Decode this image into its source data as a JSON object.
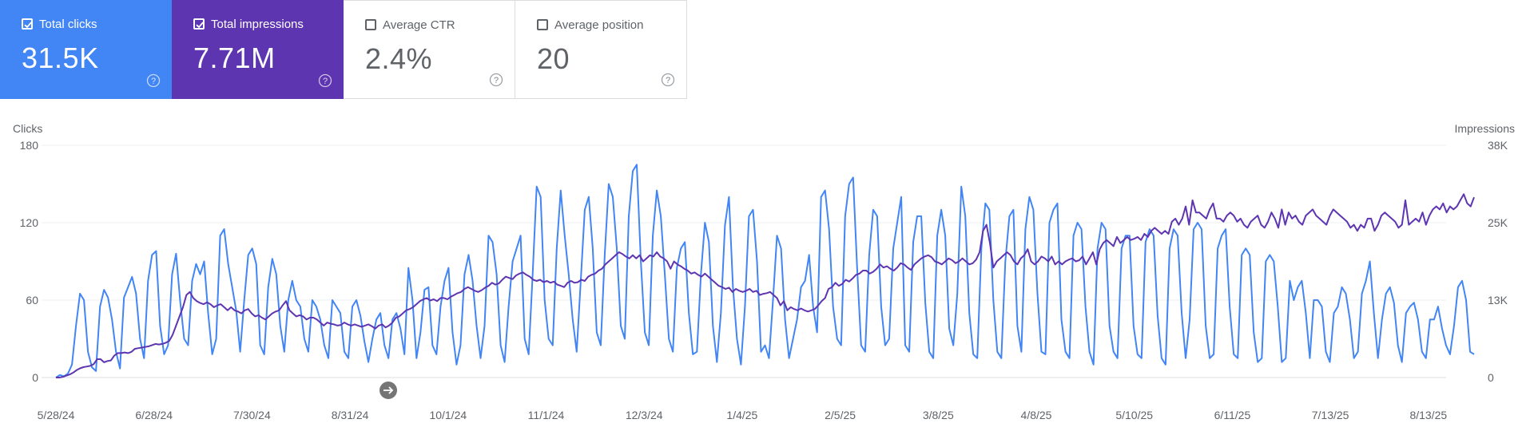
{
  "cards": [
    {
      "label": "Total clicks",
      "value": "31.5K",
      "checked": true,
      "color": "#4285f4"
    },
    {
      "label": "Total impressions",
      "value": "7.71M",
      "checked": true,
      "color": "#5e35b1"
    },
    {
      "label": "Average CTR",
      "value": "2.4%",
      "checked": false,
      "color": "#ffffff"
    },
    {
      "label": "Average position",
      "value": "20",
      "checked": false,
      "color": "#ffffff"
    }
  ],
  "chart_data": {
    "type": "line",
    "left_axis": {
      "title": "Clicks",
      "ticks": [
        "0",
        "60",
        "120",
        "180"
      ],
      "range": [
        0,
        180
      ]
    },
    "right_axis": {
      "title": "Impressions",
      "ticks": [
        "0",
        "13K",
        "25K",
        "38K"
      ],
      "range": [
        0,
        38000
      ]
    },
    "x_ticks": [
      "5/28/24",
      "6/28/24",
      "7/30/24",
      "8/31/24",
      "10/1/24",
      "11/1/24",
      "12/3/24",
      "1/4/25",
      "2/5/25",
      "3/8/25",
      "4/8/25",
      "5/10/25",
      "6/11/25",
      "7/13/25",
      "8/13/25"
    ],
    "series": [
      {
        "name": "Clicks",
        "axis": "left",
        "color": "#4285f4",
        "values": [
          0,
          2,
          1,
          3,
          10,
          40,
          65,
          60,
          20,
          8,
          5,
          55,
          68,
          62,
          45,
          20,
          7,
          62,
          70,
          78,
          65,
          30,
          15,
          75,
          95,
          98,
          40,
          18,
          25,
          80,
          96,
          60,
          30,
          25,
          75,
          88,
          80,
          90,
          50,
          18,
          30,
          110,
          115,
          88,
          70,
          52,
          20,
          60,
          95,
          100,
          88,
          25,
          18,
          70,
          92,
          80,
          40,
          20,
          60,
          75,
          60,
          55,
          30,
          20,
          60,
          55,
          45,
          25,
          15,
          60,
          55,
          50,
          20,
          15,
          55,
          60,
          48,
          28,
          12,
          30,
          45,
          50,
          25,
          15,
          45,
          50,
          38,
          18,
          85,
          60,
          15,
          35,
          68,
          70,
          25,
          18,
          55,
          75,
          85,
          35,
          10,
          25,
          80,
          95,
          75,
          40,
          15,
          40,
          110,
          105,
          80,
          25,
          12,
          55,
          90,
          100,
          110,
          30,
          18,
          80,
          148,
          140,
          60,
          30,
          25,
          100,
          145,
          110,
          80,
          45,
          20,
          75,
          130,
          140,
          100,
          35,
          25,
          95,
          150,
          140,
          100,
          40,
          30,
          125,
          160,
          165,
          90,
          35,
          25,
          110,
          145,
          125,
          80,
          30,
          20,
          85,
          100,
          105,
          50,
          18,
          20,
          80,
          120,
          105,
          40,
          12,
          50,
          118,
          140,
          70,
          30,
          10,
          55,
          125,
          130,
          90,
          20,
          25,
          15,
          60,
          110,
          100,
          45,
          15,
          30,
          45,
          70,
          75,
          95,
          55,
          35,
          140,
          145,
          115,
          55,
          30,
          25,
          125,
          150,
          155,
          85,
          25,
          20,
          95,
          130,
          125,
          55,
          25,
          30,
          100,
          120,
          140,
          25,
          20,
          105,
          125,
          125,
          58,
          20,
          15,
          110,
          130,
          110,
          38,
          25,
          65,
          148,
          125,
          50,
          18,
          15,
          100,
          135,
          130,
          60,
          20,
          15,
          90,
          125,
          130,
          40,
          20,
          115,
          140,
          130,
          65,
          20,
          18,
          120,
          130,
          135,
          45,
          20,
          15,
          110,
          120,
          115,
          55,
          20,
          10,
          100,
          120,
          115,
          40,
          20,
          15,
          100,
          110,
          110,
          40,
          18,
          15,
          105,
          115,
          110,
          48,
          15,
          10,
          100,
          115,
          110,
          50,
          15,
          45,
          115,
          120,
          115,
          40,
          15,
          18,
          100,
          110,
          115,
          55,
          18,
          15,
          95,
          100,
          95,
          35,
          12,
          15,
          90,
          95,
          90,
          55,
          12,
          15,
          75,
          60,
          70,
          75,
          50,
          15,
          60,
          60,
          55,
          20,
          12,
          50,
          55,
          70,
          65,
          45,
          15,
          20,
          65,
          75,
          90,
          50,
          15,
          45,
          65,
          70,
          58,
          25,
          12,
          50,
          55,
          58,
          45,
          20,
          15,
          45,
          45,
          55,
          38,
          25,
          18,
          40,
          70,
          75,
          60,
          20,
          18
        ]
      },
      {
        "name": "Impressions",
        "axis": "right",
        "color": "#5e35b1",
        "values": [
          0,
          0,
          100,
          300,
          500,
          800,
          1200,
          1500,
          1700,
          1800,
          1900,
          2200,
          3000,
          3000,
          2500,
          2700,
          2800,
          3600,
          4000,
          4000,
          4100,
          4000,
          4200,
          4700,
          4800,
          4900,
          5000,
          5100,
          5300,
          5500,
          5400,
          5500,
          5700,
          6000,
          7000,
          8500,
          10000,
          11500,
          13500,
          14000,
          13000,
          12500,
          12200,
          12000,
          12300,
          12000,
          11500,
          11800,
          12000,
          11500,
          11000,
          11500,
          11000,
          10800,
          10500,
          11000,
          11200,
          10500,
          10000,
          10200,
          9800,
          9500,
          10000,
          10500,
          10800,
          11000,
          11800,
          12500,
          11000,
          10500,
          10000,
          10200,
          10000,
          9500,
          9800,
          9800,
          9500,
          9000,
          8500,
          9000,
          8800,
          8700,
          8500,
          8600,
          9000,
          8700,
          8500,
          8700,
          8500,
          8300,
          8500,
          8700,
          8400,
          8000,
          8500,
          8700,
          8200,
          8500,
          9000,
          9800,
          10000,
          10500,
          11000,
          11200,
          11500,
          12000,
          12500,
          12800,
          13000,
          12600,
          12800,
          12500,
          13000,
          13000,
          12800,
          13200,
          13500,
          13800,
          14000,
          14500,
          14800,
          14500,
          14200,
          14000,
          14300,
          14700,
          15000,
          15500,
          15200,
          15400,
          16000,
          16500,
          16300,
          16100,
          16700,
          17000,
          17200,
          16800,
          16500,
          16000,
          15800,
          16000,
          15600,
          15800,
          15500,
          15700,
          15200,
          15000,
          14800,
          15500,
          15800,
          15500,
          15600,
          16000,
          15800,
          16500,
          16800,
          17000,
          17500,
          17800,
          18500,
          19000,
          19500,
          20000,
          20500,
          20200,
          19800,
          19500,
          20000,
          19500,
          20000,
          19000,
          19500,
          20000,
          19800,
          20500,
          19800,
          19500,
          19000,
          17800,
          19000,
          18500,
          18200,
          17800,
          17500,
          17000,
          17200,
          16800,
          16500,
          17000,
          16500,
          16000,
          15500,
          15000,
          14800,
          14500,
          14700,
          14000,
          14500,
          14200,
          14000,
          14200,
          14500,
          14000,
          14200,
          13500,
          13700,
          13800,
          14000,
          13500,
          13000,
          11800,
          12500,
          11000,
          11500,
          11200,
          11000,
          11300,
          11000,
          10800,
          11000,
          11200,
          11800,
          12500,
          13000,
          14500,
          14800,
          15500,
          15000,
          15300,
          16000,
          15700,
          16200,
          16800,
          17000,
          17500,
          17500,
          17000,
          17300,
          17800,
          18500,
          18000,
          18200,
          17800,
          17500,
          18000,
          18700,
          18500,
          18000,
          17600,
          18500,
          19000,
          19500,
          19800,
          20000,
          19700,
          19000,
          18800,
          18500,
          19000,
          19500,
          19200,
          18700,
          19000,
          19500,
          19000,
          18500,
          18700,
          19300,
          20500,
          24000,
          25000,
          22000,
          18000,
          19000,
          19500,
          20000,
          20500,
          20000,
          19000,
          18500,
          19500,
          20000,
          21000,
          19000,
          18500,
          19000,
          19800,
          19500,
          19000,
          19800,
          18500,
          19000,
          18500,
          19000,
          19300,
          19500,
          19000,
          19200,
          19800,
          18500,
          19500,
          20500,
          18500,
          21000,
          22000,
          22500,
          22000,
          21500,
          23000,
          22000,
          22500,
          23000,
          22500,
          22700,
          23000,
          22500,
          23500,
          23000,
          24000,
          24500,
          24000,
          23500,
          24000,
          23500,
          25500,
          26000,
          25000,
          26000,
          28000,
          25000,
          29000,
          27000,
          27000,
          26500,
          26000,
          27500,
          28500,
          26000,
          26000,
          25500,
          26500,
          27000,
          26500,
          25500,
          26000,
          25000,
          24500,
          25500,
          26000,
          26500,
          25000,
          24500,
          25500,
          27000,
          26000,
          24500,
          27500,
          25000,
          27000,
          26000,
          26500,
          25500,
          25000,
          26500,
          27000,
          27500,
          26500,
          26000,
          25500,
          25000,
          26500,
          27500,
          27000,
          26500,
          26000,
          25500,
          24500,
          25000,
          24000,
          25000,
          24500,
          26000,
          26000,
          24000,
          25000,
          26500,
          27000,
          26500,
          26000,
          25500,
          24500,
          25000,
          29000,
          25000,
          25500,
          26000,
          25500,
          27000,
          25000,
          26500,
          27500,
          28000,
          27500,
          28500,
          27000,
          28000,
          27500,
          28000,
          29000,
          30000,
          28500,
          28000,
          29500
        ]
      }
    ]
  }
}
